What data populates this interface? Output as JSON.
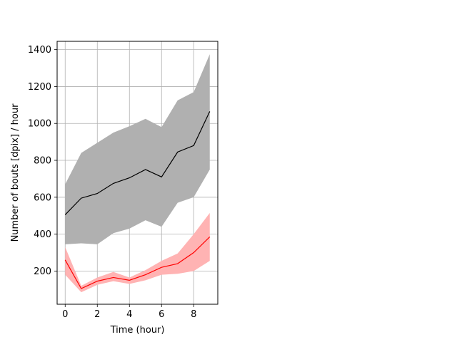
{
  "chart_data": {
    "type": "line",
    "title": "",
    "xlabel": "Time (hour)",
    "ylabel": "Number of bouts [dpix]  / hour",
    "xlim": [
      -0.5,
      9.5
    ],
    "ylim": [
      20,
      1445
    ],
    "xticks": [
      0,
      2,
      4,
      6,
      8
    ],
    "yticks": [
      200,
      400,
      600,
      800,
      1000,
      1200,
      1400
    ],
    "grid": true,
    "legend": "none",
    "x": [
      0,
      1,
      2,
      3,
      4,
      5,
      6,
      7,
      8,
      9
    ],
    "series": [
      {
        "color": "#000000",
        "band_color": "#b0b0b0",
        "values": [
          505,
          595,
          620,
          675,
          705,
          750,
          710,
          845,
          880,
          1065
        ],
        "lower": [
          345,
          350,
          345,
          405,
          430,
          475,
          440,
          570,
          600,
          750
        ],
        "upper": [
          670,
          840,
          895,
          950,
          985,
          1025,
          980,
          1125,
          1170,
          1375
        ]
      },
      {
        "color": "#ff0000",
        "band_color": "#ffb3b3",
        "values": [
          260,
          105,
          145,
          165,
          150,
          180,
          220,
          240,
          300,
          385
        ],
        "lower": [
          180,
          85,
          125,
          145,
          130,
          150,
          180,
          185,
          200,
          255
        ],
        "upper": [
          330,
          120,
          165,
          195,
          165,
          205,
          255,
          295,
          400,
          515
        ]
      }
    ]
  }
}
